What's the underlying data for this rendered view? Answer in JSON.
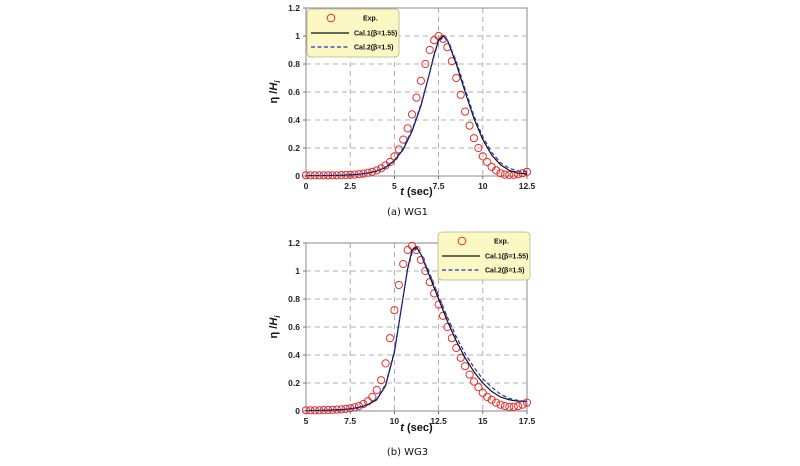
{
  "chart_data": [
    {
      "type": "scatter",
      "caption": "(a) WG1",
      "xlabel": "t (sec)",
      "ylabel": "η /Hi",
      "xlim": [
        0,
        12.5
      ],
      "ylim": [
        0,
        1.2
      ],
      "xticks": [
        "0",
        "2.5",
        "5",
        "7.5",
        "10",
        "12.5"
      ],
      "yticks": [
        "0",
        "0.2",
        "0.4",
        "0.6",
        "0.8",
        "1",
        "1.2"
      ],
      "grid": "dashed",
      "legend_position": "top-left",
      "legend": [
        "Exp.",
        "Cal.1(β=1.55)",
        "Cal.2(β=1.5)"
      ],
      "series": [
        {
          "name": "Exp.",
          "style": "circles",
          "color": "#e8302a",
          "x": [
            0,
            0.25,
            0.5,
            0.75,
            1,
            1.25,
            1.5,
            1.75,
            2,
            2.25,
            2.5,
            2.75,
            3,
            3.25,
            3.5,
            3.75,
            4,
            4.25,
            4.5,
            4.75,
            5,
            5.25,
            5.5,
            5.75,
            6,
            6.25,
            6.5,
            6.75,
            7,
            7.25,
            7.5,
            7.75,
            8,
            8.25,
            8.5,
            8.75,
            9,
            9.25,
            9.5,
            9.75,
            10,
            10.25,
            10.5,
            10.75,
            11,
            11.25,
            11.5,
            11.75,
            12,
            12.25,
            12.5
          ],
          "y": [
            0.005,
            0.005,
            0.005,
            0.005,
            0.005,
            0.005,
            0.005,
            0.005,
            0.006,
            0.007,
            0.008,
            0.01,
            0.013,
            0.017,
            0.023,
            0.03,
            0.04,
            0.055,
            0.075,
            0.1,
            0.14,
            0.19,
            0.26,
            0.34,
            0.44,
            0.56,
            0.68,
            0.8,
            0.9,
            0.97,
            1.0,
            0.98,
            0.92,
            0.82,
            0.7,
            0.58,
            0.46,
            0.36,
            0.27,
            0.2,
            0.14,
            0.1,
            0.065,
            0.04,
            0.02,
            0.01,
            0.008,
            0.008,
            0.012,
            0.02,
            0.03
          ]
        },
        {
          "name": "Cal.1(β=1.55)",
          "style": "solid",
          "color": "#111111",
          "x": [
            0,
            1,
            2,
            3,
            3.5,
            4,
            4.5,
            5,
            5.5,
            6,
            6.5,
            7,
            7.25,
            7.5,
            7.75,
            8,
            8.5,
            9,
            9.5,
            10,
            10.5,
            11,
            11.5,
            12,
            12.5
          ],
          "y": [
            0.002,
            0.003,
            0.005,
            0.012,
            0.02,
            0.035,
            0.06,
            0.11,
            0.19,
            0.32,
            0.5,
            0.74,
            0.87,
            0.97,
            1.0,
            0.97,
            0.8,
            0.6,
            0.41,
            0.26,
            0.15,
            0.08,
            0.04,
            0.02,
            0.015
          ]
        },
        {
          "name": "Cal.2(β=1.5)",
          "style": "dashed",
          "color": "#2233cc",
          "x": [
            0,
            1,
            2,
            3,
            3.5,
            4,
            4.5,
            5,
            5.5,
            6,
            6.5,
            7,
            7.25,
            7.5,
            7.75,
            8,
            8.5,
            9,
            9.5,
            10,
            10.5,
            11,
            11.5,
            12,
            12.5
          ],
          "y": [
            0.002,
            0.003,
            0.005,
            0.013,
            0.022,
            0.037,
            0.063,
            0.115,
            0.2,
            0.33,
            0.51,
            0.74,
            0.86,
            0.96,
            0.99,
            0.97,
            0.82,
            0.62,
            0.43,
            0.28,
            0.17,
            0.095,
            0.055,
            0.035,
            0.03
          ]
        }
      ]
    },
    {
      "type": "scatter",
      "caption": "(b) WG3",
      "xlabel": "t (sec)",
      "ylabel": "η /Hi",
      "xlim": [
        5,
        17.5
      ],
      "ylim": [
        0,
        1.2
      ],
      "xticks": [
        "5",
        "7.5",
        "10",
        "12.5",
        "15",
        "17.5"
      ],
      "yticks": [
        "0",
        "0.2",
        "0.4",
        "0.6",
        "0.8",
        "1",
        "1.2"
      ],
      "grid": "dashed",
      "legend_position": "top-right",
      "legend": [
        "Exp.",
        "Cal.1(β=1.55)",
        "Cal.2(β=1.5)"
      ],
      "series": [
        {
          "name": "Exp.",
          "style": "circles",
          "color": "#e8302a",
          "x": [
            5,
            5.25,
            5.5,
            5.75,
            6,
            6.25,
            6.5,
            6.75,
            7,
            7.25,
            7.5,
            7.75,
            8,
            8.25,
            8.5,
            8.75,
            9,
            9.25,
            9.5,
            9.75,
            10,
            10.25,
            10.5,
            10.75,
            11,
            11.25,
            11.5,
            11.75,
            12,
            12.25,
            12.5,
            12.75,
            13,
            13.25,
            13.5,
            13.75,
            14,
            14.25,
            14.5,
            14.75,
            15,
            15.25,
            15.5,
            15.75,
            16,
            16.25,
            16.5,
            16.75,
            17,
            17.25,
            17.5
          ],
          "y": [
            0.005,
            0.005,
            0.005,
            0.005,
            0.006,
            0.007,
            0.008,
            0.01,
            0.012,
            0.015,
            0.02,
            0.027,
            0.035,
            0.05,
            0.07,
            0.1,
            0.15,
            0.22,
            0.34,
            0.52,
            0.72,
            0.9,
            1.05,
            1.15,
            1.18,
            1.15,
            1.08,
            1.0,
            0.92,
            0.84,
            0.76,
            0.68,
            0.6,
            0.52,
            0.45,
            0.38,
            0.32,
            0.26,
            0.21,
            0.17,
            0.13,
            0.1,
            0.08,
            0.06,
            0.045,
            0.035,
            0.03,
            0.03,
            0.035,
            0.045,
            0.06
          ]
        },
        {
          "name": "Cal.1(β=1.55)",
          "style": "solid",
          "color": "#111111",
          "x": [
            5,
            6,
            7,
            7.5,
            8,
            8.5,
            9,
            9.5,
            10,
            10.5,
            10.75,
            11,
            11.25,
            11.5,
            12,
            12.5,
            13,
            13.5,
            14,
            14.5,
            15,
            15.5,
            16,
            16.5,
            17,
            17.5
          ],
          "y": [
            0.003,
            0.005,
            0.01,
            0.015,
            0.025,
            0.045,
            0.08,
            0.18,
            0.42,
            0.82,
            1.02,
            1.15,
            1.17,
            1.12,
            0.96,
            0.8,
            0.64,
            0.5,
            0.38,
            0.28,
            0.2,
            0.14,
            0.1,
            0.08,
            0.07,
            0.07
          ]
        },
        {
          "name": "Cal.2(β=1.5)",
          "style": "dashed",
          "color": "#2233cc",
          "x": [
            5,
            6,
            7,
            7.5,
            8,
            8.5,
            9,
            9.5,
            10,
            10.5,
            10.75,
            11,
            11.25,
            11.5,
            12,
            12.5,
            13,
            13.5,
            14,
            14.5,
            15,
            15.5,
            16,
            16.5,
            17,
            17.5
          ],
          "y": [
            0.003,
            0.005,
            0.01,
            0.016,
            0.027,
            0.048,
            0.085,
            0.19,
            0.43,
            0.82,
            1.01,
            1.13,
            1.16,
            1.12,
            0.98,
            0.82,
            0.67,
            0.53,
            0.41,
            0.31,
            0.23,
            0.17,
            0.12,
            0.09,
            0.075,
            0.07
          ]
        }
      ]
    }
  ]
}
